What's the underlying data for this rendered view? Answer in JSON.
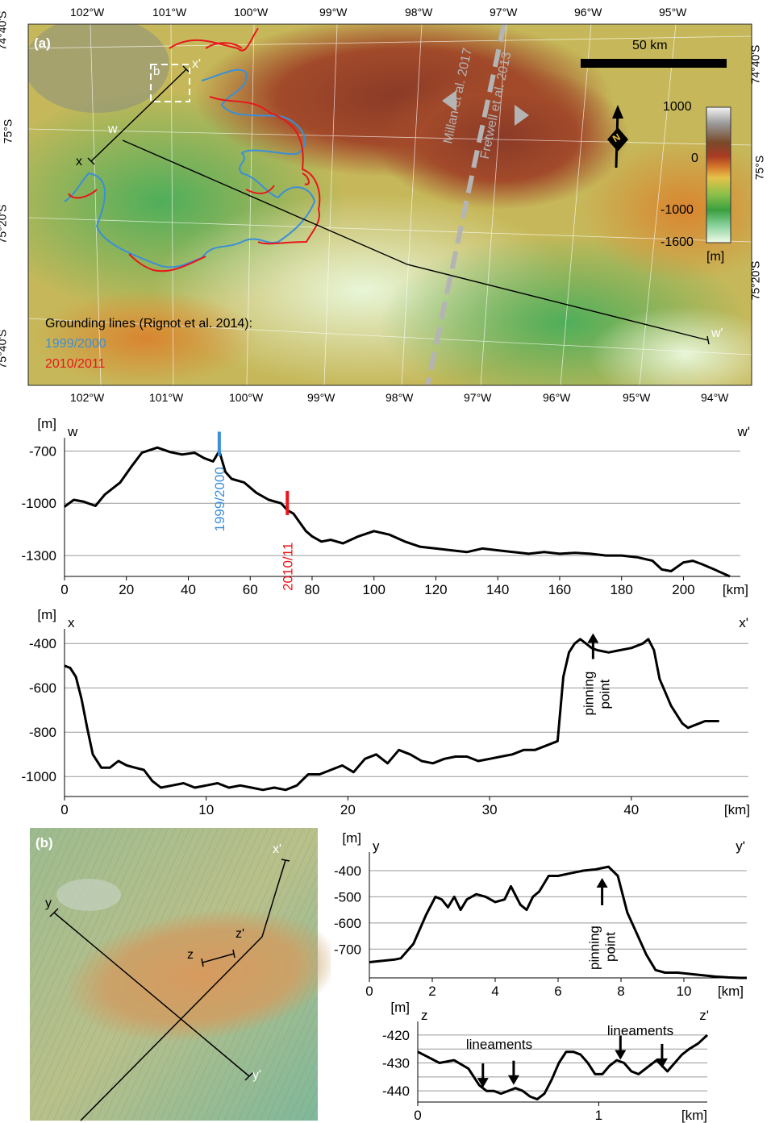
{
  "panel_a": {
    "label": "(a)",
    "top_lon": [
      "102°W",
      "101°W",
      "100°W",
      "99°W",
      "98°W",
      "97°W",
      "96°W",
      "95°W"
    ],
    "bottom_lon": [
      "102°W",
      "101°W",
      "100°W",
      "99°W",
      "98°W",
      "97°W",
      "96°W",
      "95°W",
      "94°W"
    ],
    "left_lat": [
      "74°40'S",
      "75°S",
      "75°20'S",
      "75°40'S"
    ],
    "right_lat": [
      "74°40'S",
      "75°S",
      "75°20'S"
    ],
    "scalebar": "50 km",
    "north": "N",
    "colorbar": {
      "ticks": [
        "1000",
        "0",
        "-1000",
        "-1600"
      ],
      "unit": "[m]"
    },
    "legend_title": "Grounding lines (Rignot et al. 2014):",
    "legend_1999": "1999/2000",
    "legend_2010": "2010/2011",
    "ref_millan": "Millan et al. 2017",
    "ref_fretwell": "Fretwell et al. 2013",
    "profile_labels": {
      "x": "x",
      "xp": "x'",
      "w": "w",
      "wp": "w'",
      "b": "b"
    },
    "colors": {
      "gl_1999": "#3b8fd6",
      "gl_2010": "#e8161b",
      "profile": "#000000",
      "ref_line": "#b4b4b4"
    }
  },
  "panel_b": {
    "label": "(b)",
    "profile_labels": {
      "x": "x'",
      "y": "y",
      "yp": "y'",
      "z": "z",
      "zp": "z'"
    }
  },
  "chart_data": [
    {
      "id": "ww",
      "type": "line",
      "start_label": "w",
      "end_label": "w'",
      "ylabel": "[m]",
      "xlabel": "[km]",
      "xlim": [
        0,
        215
      ],
      "ylim": [
        -1420,
        -670
      ],
      "xticks": [
        "0",
        "20",
        "40",
        "60",
        "80",
        "100",
        "120",
        "140",
        "160",
        "180",
        "200"
      ],
      "yticks": [
        "-700",
        "-1000",
        "-1300"
      ],
      "x": [
        0,
        3,
        6,
        10,
        13,
        18,
        22,
        25,
        30,
        34,
        38,
        42,
        45,
        48,
        50,
        52,
        54,
        58,
        62,
        66,
        70,
        72,
        74,
        76,
        78,
        80,
        83,
        86,
        90,
        95,
        100,
        105,
        110,
        115,
        120,
        125,
        130,
        135,
        140,
        145,
        150,
        155,
        160,
        165,
        170,
        175,
        180,
        185,
        190,
        193,
        196,
        200,
        203,
        206,
        210,
        215
      ],
      "y": [
        -1020,
        -980,
        -990,
        -1015,
        -950,
        -880,
        -780,
        -710,
        -680,
        -705,
        -720,
        -710,
        -740,
        -760,
        -700,
        -820,
        -860,
        -880,
        -940,
        -980,
        -1000,
        -1040,
        -1060,
        -1110,
        -1160,
        -1190,
        -1220,
        -1210,
        -1230,
        -1190,
        -1160,
        -1180,
        -1220,
        -1250,
        -1260,
        -1270,
        -1280,
        -1260,
        -1270,
        -1280,
        -1290,
        -1280,
        -1290,
        -1285,
        -1290,
        -1300,
        -1300,
        -1310,
        -1330,
        -1380,
        -1390,
        -1340,
        -1330,
        -1350,
        -1380,
        -1420
      ],
      "markers": [
        {
          "x": 50,
          "label": "1999/2000",
          "color": "#3b8fd6"
        },
        {
          "x": 72,
          "label": "2010/11",
          "color": "#e8161b"
        }
      ]
    },
    {
      "id": "xx",
      "type": "line",
      "start_label": "x",
      "end_label": "x'",
      "ylabel": "[m]",
      "xlabel": "[km]",
      "xlim": [
        0,
        46.5
      ],
      "ylim": [
        -1090,
        -370
      ],
      "xticks": [
        "0",
        "10",
        "20",
        "30",
        "40"
      ],
      "xtick_values": [
        0,
        10,
        20,
        30,
        40
      ],
      "yticks": [
        "-400",
        "-600",
        "-800",
        "-1000"
      ],
      "ytick_values": [
        -400,
        -600,
        -800,
        -1000
      ],
      "x": [
        0,
        0.4,
        0.8,
        1.2,
        1.6,
        2.0,
        2.6,
        3.2,
        3.8,
        4.4,
        5.0,
        5.6,
        6.2,
        6.8,
        7.6,
        8.4,
        9.2,
        10,
        10.8,
        11.6,
        12.4,
        13.2,
        14,
        14.8,
        15.6,
        16.4,
        17.2,
        18,
        18.8,
        19.6,
        20.4,
        21.2,
        22,
        22.8,
        23.6,
        24.4,
        25.2,
        26,
        26.8,
        27.6,
        28.4,
        29.2,
        30,
        30.8,
        31.6,
        32.4,
        33.2,
        34,
        34.8,
        35.2,
        35.6,
        36,
        36.4,
        36.8,
        37.2,
        37.6,
        38.4,
        39.2,
        40,
        40.8,
        41.2,
        41.6,
        42,
        42.4,
        42.8,
        43.2,
        43.6,
        44,
        44.4,
        44.8,
        45.2,
        45.6,
        46.2
      ],
      "y": [
        -500,
        -510,
        -550,
        -650,
        -780,
        -900,
        -960,
        -960,
        -930,
        -950,
        -960,
        -970,
        -1020,
        -1050,
        -1040,
        -1030,
        -1050,
        -1040,
        -1030,
        -1050,
        -1040,
        -1050,
        -1060,
        -1050,
        -1060,
        -1040,
        -990,
        -990,
        -970,
        -950,
        -980,
        -920,
        -900,
        -940,
        -880,
        -900,
        -930,
        -940,
        -920,
        -910,
        -910,
        -930,
        -920,
        -910,
        -900,
        -880,
        -880,
        -860,
        -840,
        -550,
        -440,
        -400,
        -380,
        -400,
        -420,
        -430,
        -440,
        -430,
        -420,
        -400,
        -380,
        -430,
        -560,
        -620,
        -680,
        -720,
        -760,
        -780,
        -770,
        -760,
        -750,
        -750,
        -750
      ],
      "annotation": {
        "x": 37.3,
        "y": -470,
        "label1": "pinning",
        "label2": "point"
      }
    },
    {
      "id": "yy",
      "type": "line",
      "start_label": "y",
      "end_label": "y'",
      "ylabel": "[m]",
      "xlabel": "[km]",
      "xlim": [
        0,
        12
      ],
      "ylim": [
        -810,
        -360
      ],
      "xticks": [
        "0",
        "2",
        "4",
        "6",
        "8",
        "10"
      ],
      "xtick_values": [
        0,
        2,
        4,
        6,
        8,
        10
      ],
      "yticks": [
        "-400",
        "-500",
        "-600",
        "-700"
      ],
      "ytick_values": [
        -400,
        -500,
        -600,
        -700
      ],
      "x": [
        0,
        0.4,
        0.8,
        1.0,
        1.4,
        1.8,
        2.1,
        2.3,
        2.5,
        2.7,
        2.9,
        3.1,
        3.4,
        3.7,
        4.0,
        4.3,
        4.5,
        4.8,
        5.0,
        5.2,
        5.4,
        5.7,
        6.0,
        6.4,
        6.8,
        7.2,
        7.6,
        7.9,
        8.2,
        8.5,
        8.8,
        9.1,
        9.4,
        9.8,
        10.2,
        10.6,
        11.0,
        11.4,
        11.8,
        12.0
      ],
      "y": [
        -750,
        -745,
        -740,
        -735,
        -680,
        -570,
        -500,
        -510,
        -540,
        -500,
        -550,
        -510,
        -490,
        -500,
        -520,
        -510,
        -460,
        -530,
        -550,
        -500,
        -480,
        -420,
        -420,
        -410,
        -400,
        -395,
        -385,
        -420,
        -560,
        -640,
        -720,
        -780,
        -790,
        -790,
        -795,
        -800,
        -805,
        -808,
        -810,
        -810
      ],
      "annotation": {
        "x": 7.4,
        "y": -440,
        "label1": "pinning",
        "label2": "point"
      }
    },
    {
      "id": "zz",
      "type": "line",
      "start_label": "z",
      "end_label": "z'",
      "ylabel": "[m]",
      "xlabel": "[km]",
      "xlim": [
        0,
        1.6
      ],
      "ylim": [
        -444,
        -418
      ],
      "xticks": [
        "0",
        "1"
      ],
      "xtick_values": [
        0,
        1
      ],
      "yticks": [
        "-420",
        "-430",
        "-440"
      ],
      "ytick_values": [
        -420,
        -430,
        -440
      ],
      "x": [
        0,
        0.06,
        0.12,
        0.2,
        0.28,
        0.34,
        0.38,
        0.42,
        0.46,
        0.5,
        0.54,
        0.58,
        0.62,
        0.66,
        0.7,
        0.74,
        0.78,
        0.82,
        0.86,
        0.9,
        0.94,
        0.98,
        1.02,
        1.06,
        1.1,
        1.14,
        1.18,
        1.22,
        1.26,
        1.32,
        1.38,
        1.42,
        1.46,
        1.5,
        1.55,
        1.6
      ],
      "y": [
        -426,
        -428,
        -430,
        -429,
        -432,
        -438,
        -440,
        -440,
        -441,
        -440,
        -439,
        -440,
        -442,
        -443,
        -441,
        -436,
        -430,
        -426,
        -426,
        -427,
        -430,
        -434,
        -434,
        -431,
        -429,
        -430,
        -433,
        -434,
        -432,
        -429,
        -433,
        -430,
        -427,
        -425,
        -423,
        -420
      ],
      "annotation_label": "lineaments",
      "arrows": [
        0.36,
        0.53,
        1.12,
        1.35
      ]
    }
  ]
}
